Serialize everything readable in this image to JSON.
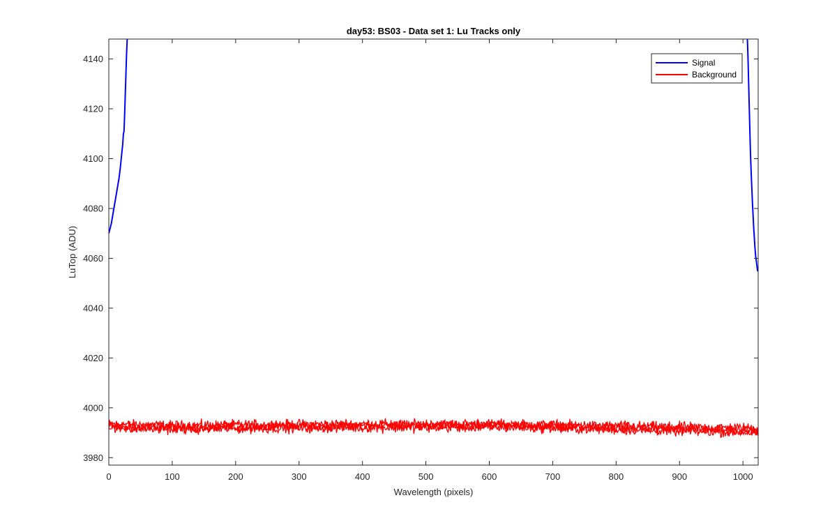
{
  "chart_data": {
    "type": "line",
    "title": "day53: BS03 - Data set 1: Lu Tracks only",
    "xlabel": "Wavelength (pixels)",
    "ylabel": "LuTop (ADU)",
    "xlim": [
      0,
      1024
    ],
    "ylim": [
      3977,
      4148
    ],
    "x_ticks": [
      0,
      100,
      200,
      300,
      400,
      500,
      600,
      700,
      800,
      900,
      1000
    ],
    "y_ticks": [
      3980,
      4000,
      4020,
      4040,
      4060,
      4080,
      4100,
      4120,
      4140
    ],
    "grid": false,
    "legend_position": "top-right",
    "series": [
      {
        "name": "Signal",
        "color": "#0000ff",
        "segments": [
          {
            "x": [
              0,
              2,
              4,
              6,
              8,
              10,
              12,
              14,
              16,
              18,
              20,
              22,
              23,
              24,
              25,
              26,
              27,
              28,
              29
            ],
            "y": [
              4070,
              4072,
              4074,
              4077,
              4080,
              4083,
              4086,
              4089,
              4092,
              4096,
              4101,
              4106,
              4110,
              4111,
              4118,
              4126,
              4134,
              4142,
              4148
            ]
          },
          {
            "x": [
              1007,
              1008,
              1009,
              1010,
              1011,
              1012,
              1013,
              1014,
              1015,
              1016,
              1017,
              1018,
              1019,
              1020,
              1021,
              1022,
              1023,
              1024
            ],
            "y": [
              4148,
              4140,
              4130,
              4120,
              4110,
              4101,
              4094,
              4088,
              4082,
              4077,
              4072,
              4068,
              4064,
              4061,
              4059,
              4057,
              4055,
              4056
            ]
          }
        ]
      },
      {
        "name": "Background",
        "color": "#ff0000",
        "noise_traces": [
          {
            "x": [
              0,
              100,
              200,
              300,
              400,
              500,
              600,
              700,
              800,
              900,
              1000,
              1024
            ],
            "y": [
              3993.5,
              3993.0,
              3993.2,
              3993.4,
              3993.6,
              3993.4,
              3993.6,
              3993.2,
              3992.8,
              3992.4,
              3992.0,
              3991.8
            ],
            "amplitude": 1.6
          },
          {
            "x": [
              0,
              100,
              200,
              300,
              400,
              500,
              600,
              700,
              800,
              900,
              1000,
              1024
            ],
            "y": [
              3991.8,
              3991.4,
              3991.6,
              3991.8,
              3992.0,
              3992.0,
              3992.2,
              3991.8,
              3991.2,
              3990.6,
              3990.2,
              3990.0
            ],
            "amplitude": 1.6
          },
          {
            "x": [
              0,
              100,
              200,
              300,
              400,
              500,
              600,
              700,
              800,
              900,
              1000,
              1024
            ],
            "y": [
              3992.6,
              3992.2,
              3992.4,
              3992.6,
              3992.8,
              3992.7,
              3992.9,
              3992.5,
              3992.0,
              3991.5,
              3991.1,
              3990.9
            ],
            "amplitude": 1.6
          }
        ]
      }
    ]
  }
}
